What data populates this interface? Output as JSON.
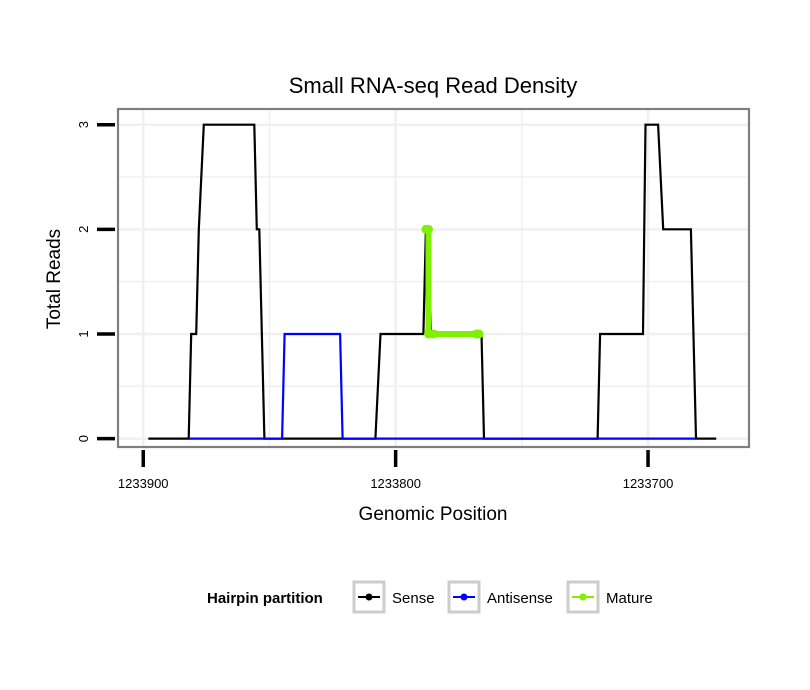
{
  "chart_data": {
    "type": "line",
    "title": "Small RNA-seq Read Density",
    "xlabel": "Genomic Position",
    "ylabel": "Total Reads",
    "xlim": [
      1233910,
      1233660
    ],
    "ylim": [
      -0.08,
      3.15
    ],
    "x_reversed": true,
    "x_ticks": [
      1233900,
      1233800,
      1233700
    ],
    "x_tick_labels": [
      "1233900",
      "1233800",
      "1233700"
    ],
    "y_ticks": [
      0,
      1,
      2,
      3
    ],
    "y_tick_labels": [
      "0",
      "1",
      "2",
      "3"
    ],
    "grid": true,
    "legend": {
      "title": "Hairpin partition",
      "position": "bottom",
      "entries": [
        "Sense",
        "Antisense",
        "Mature"
      ]
    },
    "colors": {
      "Sense": "#000000",
      "Antisense": "#0000ff",
      "Mature": "#7ff000",
      "frame": "#7f7f7f",
      "grid": "#f0f0f0"
    },
    "series": [
      {
        "name": "Sense",
        "x": [
          1233898,
          1233882,
          1233881,
          1233879,
          1233878,
          1233876,
          1233874,
          1233856,
          1233855,
          1233854,
          1233852,
          1233824,
          1233808,
          1233806,
          1233804,
          1233789,
          1233788,
          1233787,
          1233786,
          1233785,
          1233766,
          1233765,
          1233720,
          1233719,
          1233702,
          1233701,
          1233696,
          1233694,
          1233683,
          1233681,
          1233673
        ],
        "y": [
          0,
          0,
          1,
          1,
          2,
          3,
          3,
          3,
          2,
          2,
          0,
          0,
          0,
          1,
          1,
          1,
          2,
          2,
          1,
          1,
          1,
          0,
          0,
          1,
          1,
          3,
          3,
          2,
          2,
          0,
          0
        ]
      },
      {
        "name": "Antisense",
        "x": [
          1233882,
          1233852,
          1233845,
          1233844,
          1233822,
          1233821,
          1233804,
          1233681
        ],
        "y": [
          0,
          0,
          0,
          1,
          1,
          0,
          0,
          0
        ]
      },
      {
        "name": "Mature",
        "x": [
          1233788,
          1233787,
          1233787,
          1233785,
          1233768,
          1233767
        ],
        "y": [
          2,
          2,
          1,
          1,
          1,
          1
        ]
      }
    ]
  }
}
